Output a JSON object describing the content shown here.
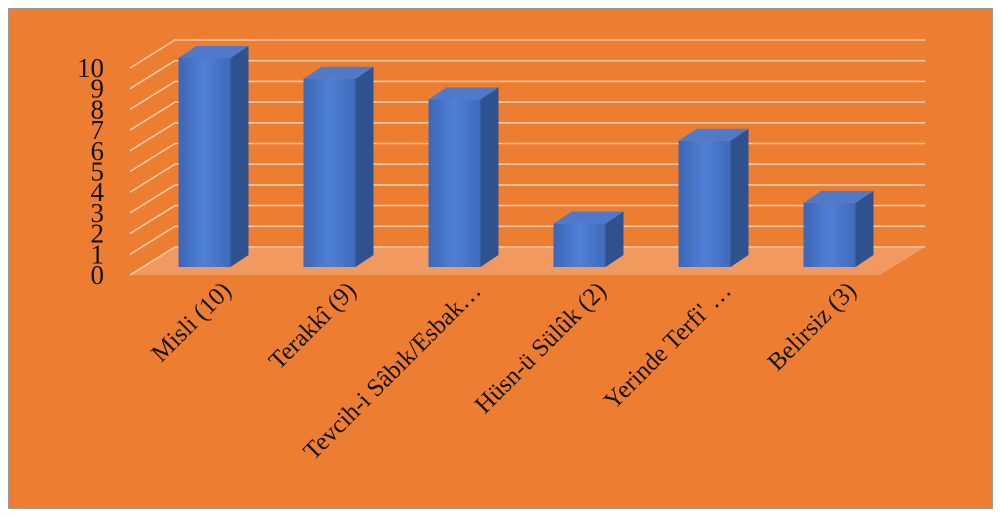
{
  "chart_data": {
    "type": "bar",
    "style": "3d-column",
    "categories": [
      "Misli (10)",
      "Terakkî (9)",
      "Tevcih-i Sâbık/Esbak…",
      "Hüsn-ü Sülûk (2)",
      "Yerinde Terfi' …",
      "Belirsiz (3)"
    ],
    "values": [
      10,
      9,
      8,
      2,
      6,
      3
    ],
    "yticks": [
      "0",
      "1",
      "2",
      "3",
      "4",
      "5",
      "6",
      "7",
      "8",
      "9",
      "10"
    ],
    "ylim": [
      0,
      10
    ],
    "grid": true,
    "legend": "none"
  },
  "colors": {
    "background": "#ED7D31",
    "bar_front": "#4472C4",
    "bar_side": "#2F528F",
    "bar_top": "#4F7AC9",
    "grid": "#F7CBAA",
    "floor": "#F4B183"
  }
}
